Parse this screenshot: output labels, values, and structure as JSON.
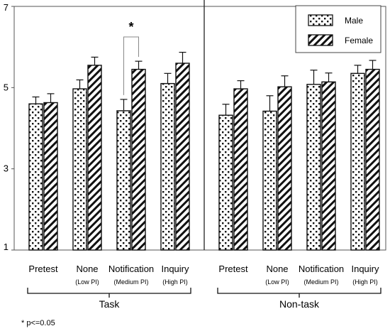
{
  "chart_data": {
    "type": "bar",
    "ylim": [
      1,
      7
    ],
    "y_ticks": [
      "1",
      "3",
      "5",
      "7"
    ],
    "grid": false,
    "legend_position": "top-right",
    "legend": [
      "Male",
      "Female"
    ],
    "panels": [
      {
        "group_label": "Task",
        "categories": [
          {
            "label": "Pretest",
            "sub": ""
          },
          {
            "label": "None",
            "sub": "(Low PI)"
          },
          {
            "label": "Notification",
            "sub": "(Medium PI)"
          },
          {
            "label": "Inquiry",
            "sub": "(High PI)"
          }
        ],
        "series": [
          {
            "name": "Male",
            "pattern": "dots",
            "values": [
              4.6,
              4.97,
              4.43,
              5.1
            ],
            "errors": [
              0.17,
              0.22,
              0.28,
              0.25
            ]
          },
          {
            "name": "Female",
            "pattern": "hatch",
            "values": [
              4.63,
              5.55,
              5.45,
              5.6
            ],
            "errors": [
              0.22,
              0.2,
              0.2,
              0.27
            ]
          }
        ],
        "significance": {
          "category_index": 2,
          "label": "*"
        }
      },
      {
        "group_label": "Non-task",
        "categories": [
          {
            "label": "Pretest",
            "sub": ""
          },
          {
            "label": "None",
            "sub": "(Low PI)"
          },
          {
            "label": "Notification",
            "sub": "(Medium PI)"
          },
          {
            "label": "Inquiry",
            "sub": "(High PI)"
          }
        ],
        "series": [
          {
            "name": "Male",
            "pattern": "dots",
            "values": [
              4.32,
              4.42,
              5.08,
              5.35
            ],
            "errors": [
              0.27,
              0.38,
              0.35,
              0.2
            ]
          },
          {
            "name": "Female",
            "pattern": "hatch",
            "values": [
              4.97,
              5.02,
              5.14,
              5.45
            ],
            "errors": [
              0.2,
              0.27,
              0.22,
              0.22
            ]
          }
        ],
        "significance": null
      }
    ]
  },
  "footnote": "* p<=0.05"
}
